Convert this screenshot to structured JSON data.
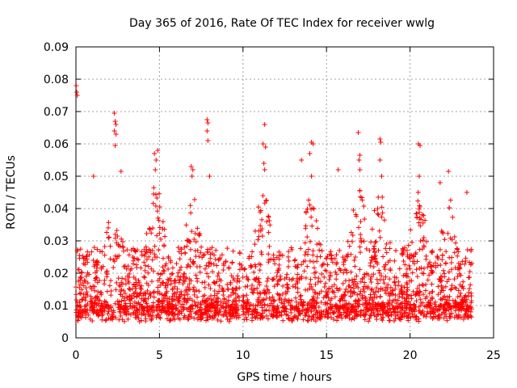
{
  "chart_data": {
    "type": "scatter",
    "title": "Day 365 of 2016, Rate Of TEC Index for receiver wwlg",
    "xlabel": "GPS time / hours",
    "ylabel": "ROTI / TECUs",
    "xlim": [
      0,
      25
    ],
    "ylim": [
      0,
      0.09
    ],
    "xticks": [
      "0",
      "5",
      "10",
      "15",
      "20",
      "25"
    ],
    "yticks": [
      "0",
      "0.01",
      "0.02",
      "0.03",
      "0.04",
      "0.05",
      "0.06",
      "0.07",
      "0.08",
      "0.09"
    ],
    "grid": true,
    "marker": "+",
    "color": "#ff0000",
    "series": [
      {
        "name": "ROTI",
        "points": [
          [
            0.02,
            0.078
          ],
          [
            0.05,
            0.076
          ],
          [
            0.08,
            0.075
          ],
          [
            2.3,
            0.0695
          ],
          [
            2.35,
            0.067
          ],
          [
            2.4,
            0.066
          ],
          [
            2.3,
            0.064
          ],
          [
            2.4,
            0.063
          ],
          [
            2.35,
            0.0595
          ],
          [
            7.85,
            0.0675
          ],
          [
            7.9,
            0.0665
          ],
          [
            7.85,
            0.064
          ],
          [
            7.9,
            0.061
          ],
          [
            11.3,
            0.066
          ],
          [
            11.2,
            0.06
          ],
          [
            11.35,
            0.059
          ],
          [
            11.25,
            0.054
          ],
          [
            11.3,
            0.052
          ],
          [
            14.1,
            0.0605
          ],
          [
            14.2,
            0.06
          ],
          [
            14.0,
            0.057
          ],
          [
            14.1,
            0.05
          ],
          [
            16.9,
            0.0635
          ],
          [
            17.0,
            0.0565
          ],
          [
            16.95,
            0.055
          ],
          [
            17.0,
            0.052
          ],
          [
            18.2,
            0.0615
          ],
          [
            18.25,
            0.0605
          ],
          [
            18.2,
            0.055
          ],
          [
            18.3,
            0.05
          ],
          [
            20.5,
            0.06
          ],
          [
            20.6,
            0.0595
          ],
          [
            20.55,
            0.05
          ],
          [
            4.7,
            0.057
          ],
          [
            4.9,
            0.058
          ],
          [
            4.8,
            0.055
          ],
          [
            4.75,
            0.052
          ],
          [
            6.9,
            0.053
          ],
          [
            7.0,
            0.052
          ],
          [
            6.95,
            0.05
          ],
          [
            8.0,
            0.05
          ],
          [
            1.05,
            0.05
          ],
          [
            2.7,
            0.0515
          ],
          [
            13.5,
            0.055
          ],
          [
            15.7,
            0.052
          ],
          [
            22.3,
            0.0515
          ],
          [
            21.8,
            0.048
          ],
          [
            23.4,
            0.045
          ]
        ]
      }
    ]
  }
}
